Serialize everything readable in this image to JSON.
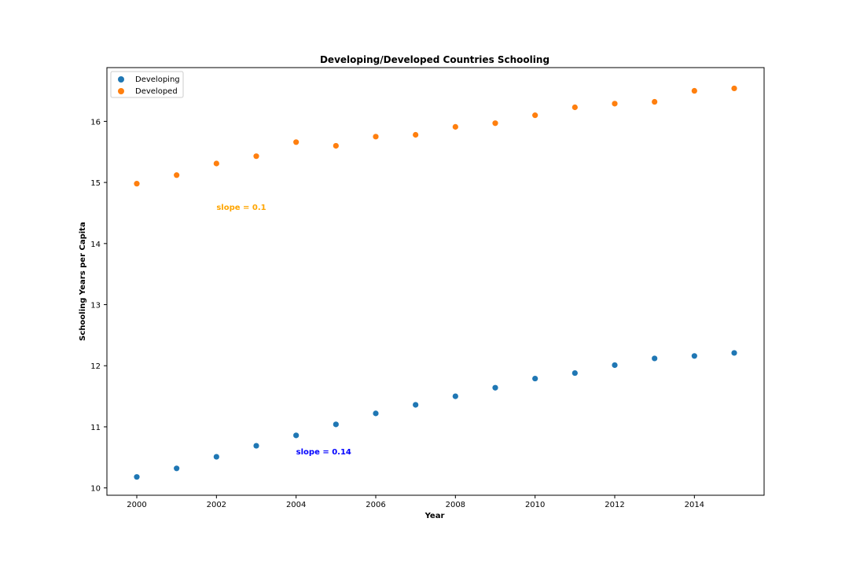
{
  "chart_data": {
    "type": "scatter",
    "title": "Developing/Developed Countries Schooling",
    "xlabel": "Year",
    "ylabel": "Schooling Years per Capita",
    "xlim": [
      1999.25,
      2015.75
    ],
    "ylim": [
      9.88,
      16.88
    ],
    "x_ticks": [
      2000,
      2002,
      2004,
      2006,
      2008,
      2010,
      2012,
      2014
    ],
    "y_ticks": [
      10,
      11,
      12,
      13,
      14,
      15,
      16
    ],
    "x_tick_labels": [
      "2000",
      "2002",
      "2004",
      "2006",
      "2008",
      "2010",
      "2012",
      "2014"
    ],
    "y_tick_labels": [
      "10",
      "11",
      "12",
      "13",
      "14",
      "15",
      "16"
    ],
    "grid": false,
    "legend_position": "top-left",
    "x": [
      2000,
      2001,
      2002,
      2003,
      2004,
      2005,
      2006,
      2007,
      2008,
      2009,
      2010,
      2011,
      2012,
      2013,
      2014,
      2015
    ],
    "series": [
      {
        "name": "Developing",
        "color": "#1f77b4",
        "values": [
          10.18,
          10.32,
          10.51,
          10.69,
          10.86,
          11.04,
          11.22,
          11.36,
          11.5,
          11.64,
          11.79,
          11.88,
          12.01,
          12.12,
          12.16,
          12.21
        ]
      },
      {
        "name": "Developed",
        "color": "#ff7f0e",
        "values": [
          14.98,
          15.12,
          15.31,
          15.43,
          15.66,
          15.6,
          15.75,
          15.78,
          15.91,
          15.97,
          16.1,
          16.23,
          16.29,
          16.32,
          16.5,
          16.54
        ]
      }
    ],
    "annotations": [
      {
        "text": "slope = 0.1",
        "x": 2002,
        "y": 14.5,
        "color": "#ffa500"
      },
      {
        "text": "slope = 0.14",
        "x": 2004,
        "y": 10.5,
        "color": "#0000ff"
      }
    ]
  }
}
